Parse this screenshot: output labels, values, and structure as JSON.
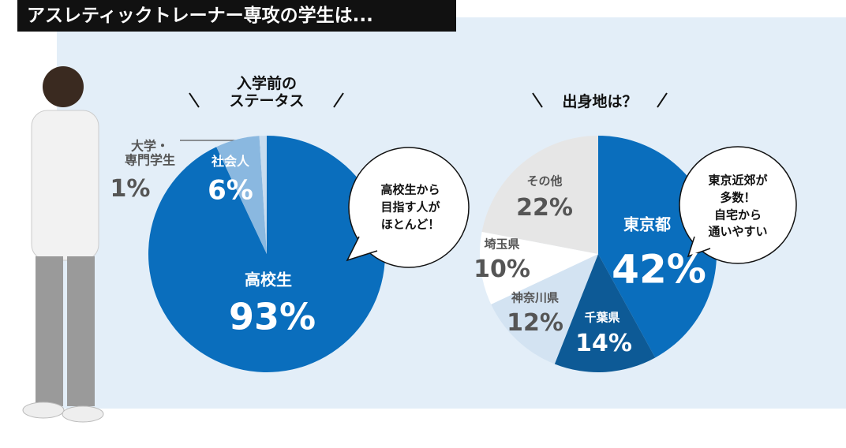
{
  "title": "アスレティックトレーナー専攻の学生は...",
  "chart_data": [
    {
      "type": "pie",
      "title": "入学前の\nステータス",
      "categories": [
        "高校生",
        "社会人",
        "大学・\n専門学生"
      ],
      "values": [
        93,
        6,
        1
      ],
      "value_labels": [
        "93%",
        "6%",
        "1%"
      ],
      "colors": [
        "#0a6ebd",
        "#8ab8e0",
        "#c8dcef"
      ],
      "annotation": "高校生から\n目指す人が\nほとんど！"
    },
    {
      "type": "pie",
      "title": "出身地は？",
      "categories": [
        "東京都",
        "千葉県",
        "神奈川県",
        "埼玉県",
        "その他"
      ],
      "values": [
        42,
        14,
        12,
        10,
        22
      ],
      "value_labels": [
        "42%",
        "14%",
        "12%",
        "10%",
        "22%"
      ],
      "colors": [
        "#0a6ebd",
        "#0d5a96",
        "#d3e3f2",
        "#ffffff",
        "#e6e6e6"
      ],
      "annotation": "東京近郊が\n多数！\n自宅から\n通いやすい"
    }
  ]
}
